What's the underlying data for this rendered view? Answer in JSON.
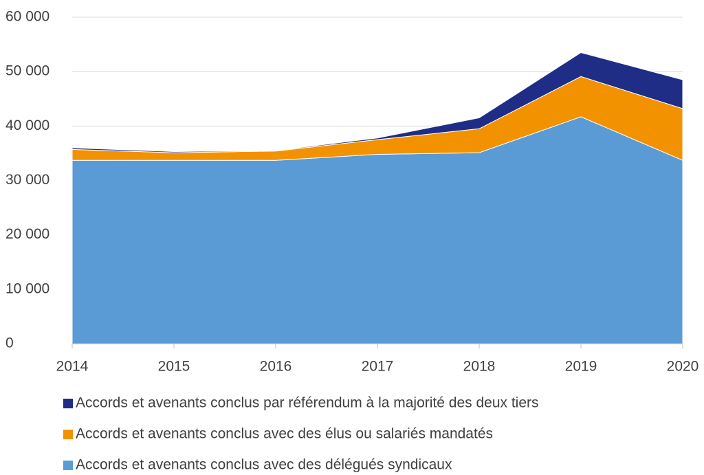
{
  "chart_data": {
    "type": "stacked_area",
    "x": [
      2014,
      2015,
      2016,
      2017,
      2018,
      2019,
      2020
    ],
    "xlim": [
      2014,
      2020
    ],
    "xticks": [
      2014,
      2015,
      2016,
      2017,
      2018,
      2019,
      2020
    ],
    "ylim": [
      0,
      60000
    ],
    "yticks": [
      0,
      {
        "value": 10000,
        "label": "10 000"
      },
      {
        "value": 20000,
        "label": "20 000"
      },
      {
        "value": 30000,
        "label": "30 000"
      },
      {
        "value": 40000,
        "label": "40 000"
      },
      {
        "value": 50000,
        "label": "50 000"
      },
      {
        "value": 60000,
        "label": "60 000"
      }
    ],
    "grid": true,
    "legend": "bottom",
    "series": [
      {
        "name": "Accords et avenants conclus avec des délégués syndicaux",
        "color": "#5b9bd5",
        "values": [
          33700,
          33700,
          33700,
          34800,
          35100,
          41700,
          33700
        ]
      },
      {
        "name": "Accords et avenants conclus avec des élus ou salariés mandatés",
        "color": "#f39200",
        "values": [
          2000,
          1400,
          1700,
          2700,
          4400,
          7400,
          9500
        ]
      },
      {
        "name": "Accords et avenants conclus par référendum à la majorité des deux tiers",
        "color": "#1f2d86",
        "values": [
          300,
          200,
          100,
          300,
          2000,
          4400,
          5300
        ]
      }
    ]
  }
}
